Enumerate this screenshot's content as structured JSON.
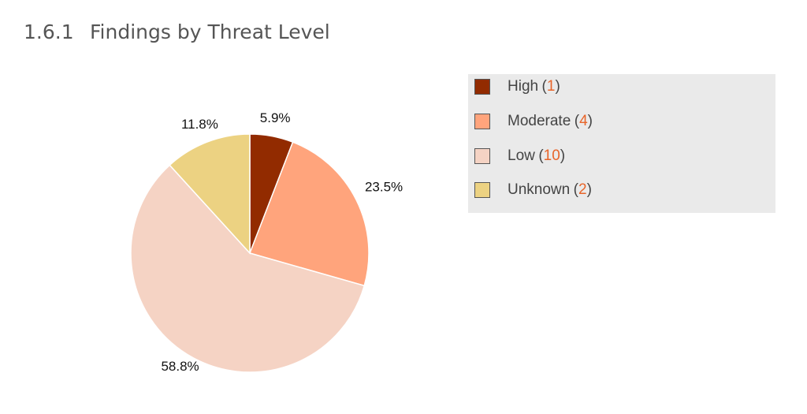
{
  "section": {
    "number": "1.6.1",
    "title": "Findings by Threat Level"
  },
  "chart_data": {
    "type": "pie",
    "categories": [
      "High",
      "Moderate",
      "Low",
      "Unknown"
    ],
    "values": [
      1,
      4,
      10,
      2
    ],
    "percent_labels": [
      "5.9%",
      "23.5%",
      "58.8%",
      "11.8%"
    ],
    "colors": [
      "#922b00",
      "#ffa47c",
      "#f5d3c4",
      "#ecd282"
    ],
    "legend_position": "right"
  },
  "legend": {
    "items": [
      {
        "label": "High",
        "count": "1",
        "color": "#922b00"
      },
      {
        "label": "Moderate",
        "count": "4",
        "color": "#ffa47c"
      },
      {
        "label": "Low",
        "count": "10",
        "color": "#f5d3c4"
      },
      {
        "label": "Unknown",
        "count": "2",
        "color": "#ecd282"
      }
    ]
  }
}
